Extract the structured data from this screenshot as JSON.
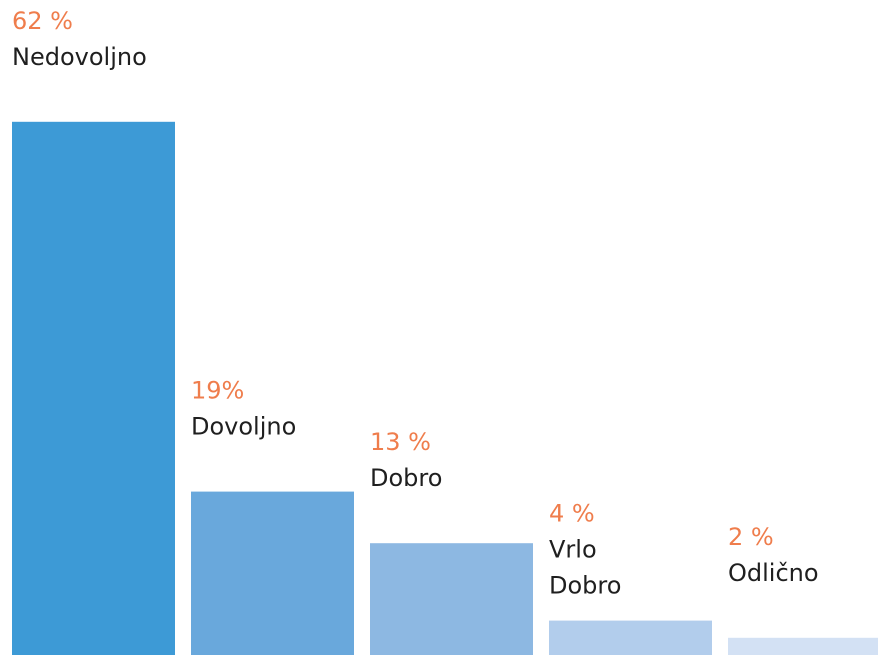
{
  "chart_data": {
    "type": "bar",
    "categories": [
      "Nedovoljno",
      "Dovoljno",
      "Dobro",
      "Vrlo Dobro",
      "Odlično"
    ],
    "values": [
      62,
      19,
      13,
      4,
      2
    ],
    "value_labels": [
      "62 %",
      "19%",
      "13 %",
      "4 %",
      "2 %"
    ],
    "colors": [
      "#3d9ad6",
      "#69a8dc",
      "#8db8e2",
      "#b2cdec",
      "#d3e1f4"
    ]
  }
}
